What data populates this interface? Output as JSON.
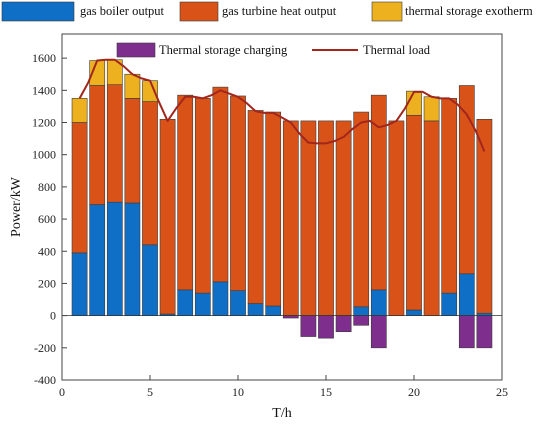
{
  "chart_data": {
    "type": "bar",
    "stacked": true,
    "xlabel": "T/h",
    "ylabel": "Power/kW",
    "xlim": [
      0,
      25
    ],
    "ylim": [
      -400,
      1750
    ],
    "xticks": [
      0,
      5,
      10,
      15,
      20,
      25
    ],
    "yticks": [
      -400,
      -200,
      0,
      200,
      400,
      600,
      800,
      1000,
      1200,
      1400,
      1600
    ],
    "grid": false,
    "legend": "top",
    "x": [
      1,
      2,
      3,
      4,
      5,
      6,
      7,
      8,
      9,
      10,
      11,
      12,
      13,
      14,
      15,
      16,
      17,
      18,
      19,
      20,
      21,
      22,
      23,
      24
    ],
    "series": [
      {
        "name": "gas boiler output",
        "kind": "bar",
        "color": "#0f6fc6",
        "values": [
          390,
          690,
          705,
          700,
          440,
          10,
          160,
          140,
          210,
          155,
          75,
          60,
          0,
          0,
          0,
          0,
          55,
          160,
          0,
          35,
          0,
          140,
          260,
          15
        ]
      },
      {
        "name": "gas turbine heat output",
        "kind": "bar",
        "color": "#d95319",
        "values": [
          810,
          740,
          730,
          650,
          890,
          1210,
          1210,
          1210,
          1210,
          1210,
          1200,
          1205,
          1210,
          1210,
          1210,
          1210,
          1210,
          1210,
          1210,
          1210,
          1210,
          1210,
          1170,
          1205
        ]
      },
      {
        "name": "thermal storage exotherm",
        "kind": "bar",
        "color": "#edb120",
        "values": [
          150,
          155,
          155,
          150,
          130,
          0,
          0,
          0,
          0,
          0,
          0,
          0,
          0,
          0,
          0,
          0,
          0,
          0,
          0,
          150,
          150,
          0,
          0,
          0
        ]
      },
      {
        "name": "Thermal storage charging",
        "kind": "bar",
        "color": "#7e2f8e",
        "values": [
          0,
          0,
          0,
          0,
          0,
          0,
          0,
          0,
          0,
          0,
          0,
          0,
          -15,
          -130,
          -140,
          -100,
          -60,
          -200,
          0,
          0,
          0,
          0,
          -200,
          -200
        ]
      },
      {
        "name": "Thermal load",
        "kind": "line",
        "color": "#a2261c",
        "x": [
          1,
          1.5,
          2,
          2.5,
          3,
          3.5,
          4,
          4.5,
          5,
          5.5,
          6,
          6.5,
          7,
          7.5,
          8,
          8.5,
          9,
          9.5,
          10,
          10.5,
          11,
          11.5,
          12,
          12.5,
          13,
          13.5,
          14,
          14.5,
          15,
          15.5,
          16,
          16.5,
          17,
          17.5,
          18,
          18.5,
          19,
          19.5,
          20,
          20.5,
          21,
          21.5,
          22,
          22.5,
          23,
          23.5,
          24
        ],
        "values": [
          1350,
          1450,
          1585,
          1590,
          1590,
          1550,
          1500,
          1475,
          1460,
          1330,
          1210,
          1290,
          1360,
          1360,
          1350,
          1370,
          1400,
          1380,
          1360,
          1320,
          1270,
          1260,
          1260,
          1230,
          1200,
          1130,
          1075,
          1070,
          1070,
          1085,
          1110,
          1160,
          1200,
          1210,
          1170,
          1185,
          1210,
          1290,
          1390,
          1390,
          1360,
          1350,
          1350,
          1310,
          1250,
          1150,
          1020
        ]
      }
    ]
  }
}
